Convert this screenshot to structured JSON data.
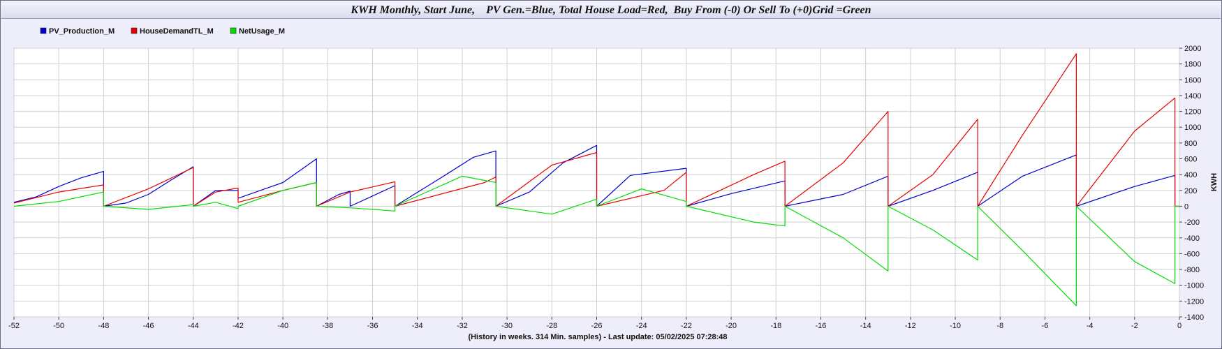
{
  "chart_data": {
    "type": "line",
    "title": "KWH Monthly, Start June,    PV Gen.=Blue, Total House Load=Red,  Buy From (-0) Or Sell To (+0)Grid =Green",
    "xlabel": "(History in weeks. 314 Min. samples) - Last update: 05/02/2025 07:28:48",
    "ylabel": "KWH",
    "xlim": [
      -52,
      0
    ],
    "ylim": [
      -1400,
      2000
    ],
    "x_ticks": [
      -52,
      -50,
      -48,
      -46,
      -44,
      -42,
      -40,
      -38,
      -36,
      -34,
      -32,
      -30,
      -28,
      -26,
      -24,
      -22,
      -20,
      -18,
      -16,
      -14,
      -12,
      -10,
      -8,
      -6,
      -4,
      -2,
      0
    ],
    "y_ticks": [
      2000,
      1800,
      1600,
      1400,
      1200,
      1000,
      800,
      600,
      400,
      200,
      0,
      -200,
      -400,
      -600,
      -800,
      -1000,
      -1200,
      -1400
    ],
    "grid": true,
    "legend_position": "top-left",
    "series": [
      {
        "name": "PV_Production_M",
        "color": "#0000cc",
        "segments": [
          {
            "x": [
              -52,
              -51,
              -50,
              -49,
              -48
            ],
            "y": [
              50,
              120,
              250,
              360,
              440
            ]
          },
          {
            "x": [
              -48,
              -47,
              -46,
              -45,
              -44
            ],
            "y": [
              0,
              40,
              150,
              330,
              500
            ]
          },
          {
            "x": [
              -44,
              -43,
              -42
            ],
            "y": [
              0,
              200,
              200
            ]
          },
          {
            "x": [
              -42,
              -40,
              -38.5
            ],
            "y": [
              100,
              300,
              600
            ]
          },
          {
            "x": [
              -38.5,
              -37.5,
              -37
            ],
            "y": [
              0,
              150,
              190
            ]
          },
          {
            "x": [
              -37,
              -36,
              -35
            ],
            "y": [
              0,
              130,
              260
            ]
          },
          {
            "x": [
              -35,
              -33,
              -31.5,
              -30.5
            ],
            "y": [
              0,
              350,
              620,
              700
            ]
          },
          {
            "x": [
              -30.5,
              -29,
              -27.5,
              -26
            ],
            "y": [
              0,
              180,
              550,
              770
            ]
          },
          {
            "x": [
              -26,
              -24.5,
              -22
            ],
            "y": [
              0,
              390,
              480
            ]
          },
          {
            "x": [
              -22,
              -20,
              -17.6
            ],
            "y": [
              0,
              160,
              320
            ]
          },
          {
            "x": [
              -17.6,
              -15,
              -13
            ],
            "y": [
              0,
              150,
              380
            ]
          },
          {
            "x": [
              -13,
              -11,
              -9
            ],
            "y": [
              0,
              200,
              430
            ]
          },
          {
            "x": [
              -9,
              -7,
              -4.6
            ],
            "y": [
              0,
              380,
              650
            ]
          },
          {
            "x": [
              -4.6,
              -2,
              -0.2
            ],
            "y": [
              0,
              250,
              390
            ]
          },
          {
            "x": [
              -0.2,
              0
            ],
            "y": [
              0,
              0
            ]
          }
        ]
      },
      {
        "name": "HouseDemandTL_M",
        "color": "#e60000",
        "segments": [
          {
            "x": [
              -52,
              -50,
              -48
            ],
            "y": [
              40,
              180,
              270
            ]
          },
          {
            "x": [
              -48,
              -46,
              -44
            ],
            "y": [
              0,
              220,
              490
            ]
          },
          {
            "x": [
              -44,
              -43,
              -42
            ],
            "y": [
              0,
              180,
              230
            ]
          },
          {
            "x": [
              -42,
              -40,
              -38.5
            ],
            "y": [
              50,
              200,
              300
            ]
          },
          {
            "x": [
              -38.5,
              -37,
              -35
            ],
            "y": [
              0,
              180,
              310
            ]
          },
          {
            "x": [
              -35,
              -31,
              -30.5
            ],
            "y": [
              0,
              300,
              370
            ]
          },
          {
            "x": [
              -30.5,
              -28,
              -26
            ],
            "y": [
              0,
              520,
              680
            ]
          },
          {
            "x": [
              -26,
              -23,
              -22
            ],
            "y": [
              0,
              200,
              430
            ]
          },
          {
            "x": [
              -22,
              -19,
              -17.6
            ],
            "y": [
              0,
              400,
              570
            ]
          },
          {
            "x": [
              -17.6,
              -15,
              -13
            ],
            "y": [
              0,
              550,
              1200
            ]
          },
          {
            "x": [
              -13,
              -11,
              -9
            ],
            "y": [
              0,
              400,
              1100
            ]
          },
          {
            "x": [
              -9,
              -7,
              -4.6
            ],
            "y": [
              0,
              900,
              1930
            ]
          },
          {
            "x": [
              -4.6,
              -2,
              -0.2
            ],
            "y": [
              0,
              950,
              1370
            ]
          },
          {
            "x": [
              -0.2,
              0
            ],
            "y": [
              0,
              0
            ]
          }
        ]
      },
      {
        "name": "NetUsage_M",
        "color": "#00dd00",
        "segments": [
          {
            "x": [
              -52,
              -50,
              -48
            ],
            "y": [
              0,
              60,
              180
            ]
          },
          {
            "x": [
              -48,
              -46,
              -44
            ],
            "y": [
              0,
              -40,
              20
            ]
          },
          {
            "x": [
              -44,
              -43,
              -42
            ],
            "y": [
              0,
              50,
              -30
            ]
          },
          {
            "x": [
              -42,
              -40,
              -38.5
            ],
            "y": [
              0,
              200,
              300
            ]
          },
          {
            "x": [
              -38.5,
              -37,
              -35
            ],
            "y": [
              0,
              -20,
              -60
            ]
          },
          {
            "x": [
              -35,
              -32,
              -30.5
            ],
            "y": [
              0,
              380,
              300
            ]
          },
          {
            "x": [
              -30.5,
              -28,
              -26
            ],
            "y": [
              0,
              -100,
              90
            ]
          },
          {
            "x": [
              -26,
              -24,
              -22
            ],
            "y": [
              0,
              220,
              60
            ]
          },
          {
            "x": [
              -22,
              -19,
              -17.6
            ],
            "y": [
              0,
              -200,
              -250
            ]
          },
          {
            "x": [
              -17.6,
              -15,
              -13
            ],
            "y": [
              0,
              -400,
              -820
            ]
          },
          {
            "x": [
              -13,
              -11,
              -9
            ],
            "y": [
              0,
              -300,
              -680
            ]
          },
          {
            "x": [
              -9,
              -7,
              -4.6
            ],
            "y": [
              0,
              -560,
              -1260
            ]
          },
          {
            "x": [
              -4.6,
              -2,
              -0.2
            ],
            "y": [
              0,
              -700,
              -980
            ]
          },
          {
            "x": [
              -0.2,
              0
            ],
            "y": [
              0,
              0
            ]
          }
        ]
      }
    ]
  }
}
